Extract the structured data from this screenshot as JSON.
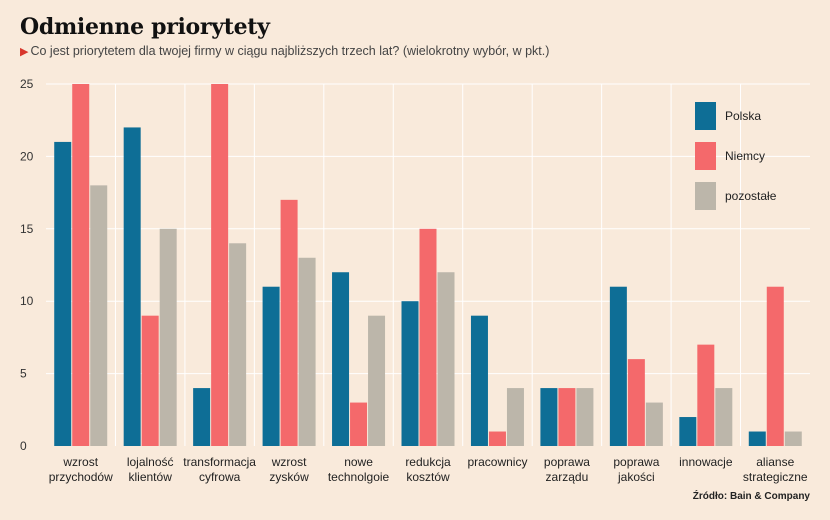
{
  "header": {
    "title": "Odmienne priorytety",
    "subtitle": "Co jest priorytetem dla twojej firmy w ciągu najbliższych trzech lat? (wielokrotny wybór, w pkt.)",
    "source": "Źródło: Bain & Company"
  },
  "colors": {
    "background": "#f9eadb",
    "polska": "#0e6e96",
    "niemcy": "#f4696b",
    "pozostale": "#bcb6aa",
    "grid": "#ffffff"
  },
  "chart_data": {
    "type": "bar",
    "categories": [
      [
        "wzrost",
        "przychodów"
      ],
      [
        "lojalność",
        "klientów"
      ],
      [
        "transformacja",
        "cyfrowa"
      ],
      [
        "wzrost",
        "zysków"
      ],
      [
        "nowe",
        "technolgoie"
      ],
      [
        "redukcja",
        "kosztów"
      ],
      [
        "pracownicy"
      ],
      [
        "poprawa",
        "zarządu"
      ],
      [
        "poprawa",
        "jakości"
      ],
      [
        "innowacje"
      ],
      [
        "alianse",
        "strategiczne"
      ]
    ],
    "series": [
      {
        "name": "Polska",
        "color": "#0e6e96",
        "values": [
          21,
          22,
          4,
          11,
          12,
          10,
          9,
          4,
          11,
          2,
          1
        ]
      },
      {
        "name": "Niemcy",
        "color": "#f4696b",
        "values": [
          25,
          9,
          25,
          17,
          3,
          15,
          1,
          4,
          6,
          7,
          11
        ]
      },
      {
        "name": "pozostałe",
        "color": "#bcb6aa",
        "values": [
          18,
          15,
          14,
          13,
          9,
          12,
          4,
          4,
          3,
          4,
          1
        ]
      }
    ],
    "ylim": [
      0,
      25
    ],
    "yticks": [
      0,
      5,
      10,
      15,
      20,
      25
    ],
    "grid": true,
    "legend_position": "top-right"
  }
}
